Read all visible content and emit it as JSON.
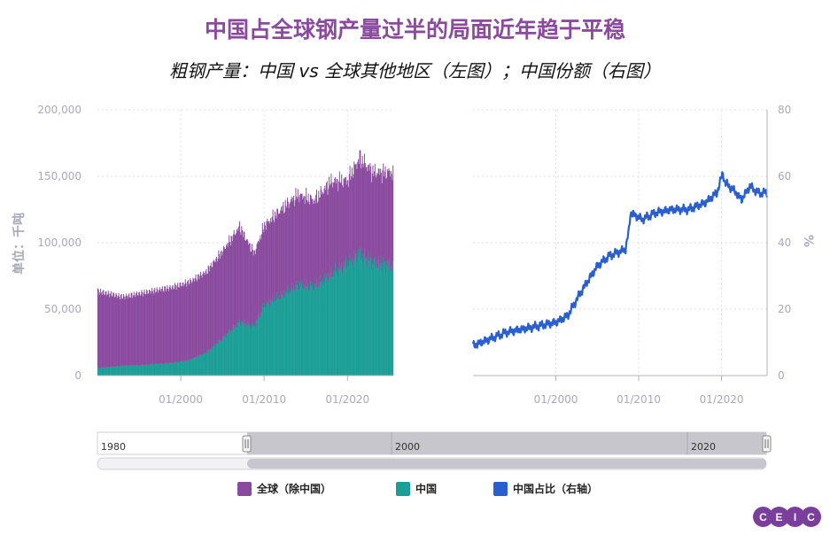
{
  "title": "中国占全球钢产量过半的局面近年趋于平稳",
  "subtitle": "粗钢产量：中国 vs 全球其他地区（左图）；中国份额（右图）",
  "legend": {
    "rest_of_world": "全球（除中国）",
    "china": "中国",
    "china_share": "中国占比（右轴）"
  },
  "colors": {
    "rest_of_world": "#8a4a9e",
    "china": "#1a9e96",
    "china_share": "#2a5fd0",
    "axis_text": "#a9a9b8"
  },
  "navigator": {
    "labels": [
      "1980",
      "2000",
      "2020"
    ]
  },
  "logo": [
    "C",
    "E",
    "I",
    "C"
  ],
  "chart_data": [
    {
      "type": "bar",
      "stacked": true,
      "frequency": "monthly",
      "x": [
        "1990-01",
        "1993-01",
        "1996-01",
        "1999-01",
        "2001-01",
        "2003-01",
        "2005-01",
        "2007-01",
        "2008-10",
        "2010-01",
        "2012-01",
        "2014-01",
        "2016-01",
        "2018-01",
        "2020-01",
        "2021-06",
        "2023-01",
        "2025-06"
      ],
      "series": [
        {
          "name": "中国",
          "values": [
            5500,
            7200,
            8000,
            9500,
            11500,
            17000,
            28000,
            40000,
            37000,
            53000,
            60000,
            68000,
            67000,
            76000,
            85000,
            92000,
            85000,
            83000
          ]
        },
        {
          "name": "全球（除中国）",
          "values": [
            58000,
            52000,
            55000,
            57000,
            59000,
            61000,
            66000,
            72000,
            55000,
            60000,
            65000,
            68000,
            65000,
            70000,
            62000,
            72000,
            68000,
            70000
          ]
        }
      ],
      "ylabel": "单位：千吨",
      "yticks": [
        "0",
        "50,000",
        "100,000",
        "150,000",
        "200,000"
      ],
      "ylim": [
        0,
        200000
      ],
      "xticks": [
        "01/2000",
        "01/2010",
        "01/2020"
      ],
      "grid": true
    },
    {
      "type": "line",
      "frequency": "monthly",
      "x": [
        "1990-01",
        "1992-01",
        "1994-01",
        "1996-01",
        "1998-01",
        "2000-01",
        "2001-06",
        "2003-01",
        "2005-01",
        "2006-06",
        "2008-06",
        "2008-11",
        "2009-01",
        "2010-06",
        "2012-01",
        "2014-01",
        "2016-01",
        "2018-01",
        "2019-06",
        "2020-03",
        "2020-06",
        "2021-06",
        "2022-06",
        "2023-06",
        "2024-06",
        "2025-06"
      ],
      "series": [
        {
          "name": "中国占比（右轴）",
          "values": [
            9,
            11,
            13,
            14,
            15,
            16,
            18,
            25,
            33,
            36,
            38,
            44,
            49,
            47,
            49,
            50,
            50,
            52,
            55,
            61,
            58,
            56,
            53,
            57,
            55,
            55
          ]
        }
      ],
      "ylabel": "%",
      "yticks": [
        "0",
        "20",
        "40",
        "60",
        "80"
      ],
      "ylim": [
        0,
        80
      ],
      "xticks": [
        "01/2000",
        "01/2010",
        "01/2020"
      ],
      "grid": true
    }
  ]
}
